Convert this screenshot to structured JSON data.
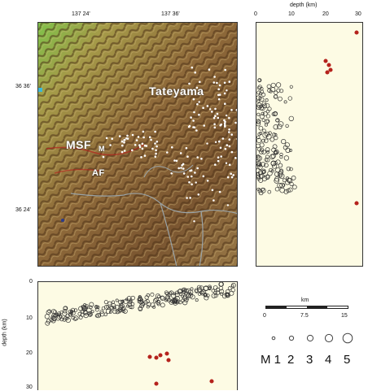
{
  "map": {
    "lon_ticks": [
      "137 24'",
      "137 36'"
    ],
    "lat_ticks": [
      "36 36'",
      "36 24'"
    ],
    "place_labels": {
      "tateyama": "Tateyama",
      "msf": "MSF",
      "af": "AF",
      "small": "M"
    }
  },
  "depth_panel_right": {
    "axis_title": "depth (km)",
    "ticks": [
      "0",
      "10",
      "20",
      "30"
    ]
  },
  "depth_panel_bottom": {
    "axis_title": "depth (km)",
    "ticks": [
      "0",
      "10",
      "20",
      "30"
    ]
  },
  "scale_bar": {
    "unit": "km",
    "ticks": [
      "0",
      "7.5",
      "15"
    ]
  },
  "magnitude_legend": {
    "labels": [
      "M 1",
      "2",
      "3",
      "4",
      "5"
    ]
  },
  "colors": {
    "panel_bg": "#fdfbe4",
    "quake_red": "#b5221c",
    "terrain_dark": "#5e3d1e",
    "terrain_light": "#b49a5a"
  }
}
